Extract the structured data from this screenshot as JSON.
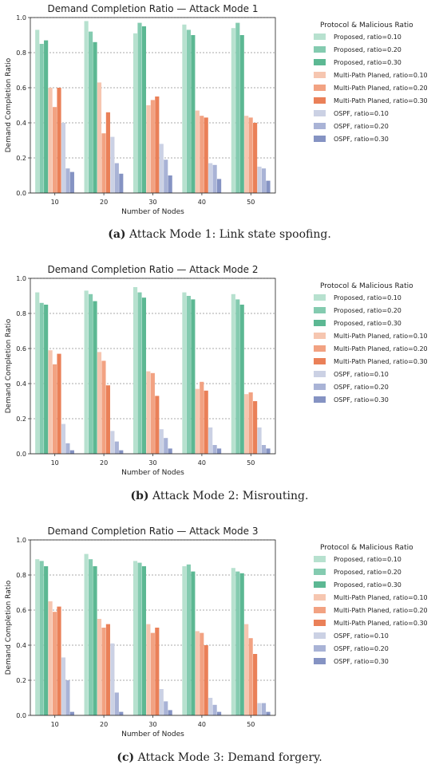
{
  "legend_title": "Protocol & Malicious Ratio",
  "series_names": [
    "Proposed, ratio=0.10",
    "Proposed, ratio=0.20",
    "Proposed, ratio=0.30",
    "Multi-Path Planed, ratio=0.10",
    "Multi-Path Planed, ratio=0.20",
    "Multi-Path Planed, ratio=0.30",
    "OSPF, ratio=0.10",
    "OSPF, ratio=0.20",
    "OSPF, ratio=0.30"
  ],
  "colors": [
    "#b7e1cf",
    "#84cbb0",
    "#5cb893",
    "#f6c6b0",
    "#f2a282",
    "#ea8058",
    "#cbd1e4",
    "#a9b3d6",
    "#8593c3"
  ],
  "panels": [
    {
      "caption_letter": "(a)",
      "caption_text": "Attack Mode 1: Link state spoofing."
    },
    {
      "caption_letter": "(b)",
      "caption_text": "Attack Mode 2: Misrouting."
    },
    {
      "caption_letter": "(c)",
      "caption_text": "Attack Mode 3: Demand forgery."
    }
  ],
  "chart_data": [
    {
      "type": "bar",
      "title": "Demand Completion Ratio — Attack Mode 1",
      "xlabel": "Number of Nodes",
      "ylabel": "Demand Completion Ratio",
      "ylim": [
        0,
        1.0
      ],
      "yticks": [
        "0.0",
        "0.2",
        "0.4",
        "0.6",
        "0.8",
        "1.0"
      ],
      "categories": [
        "10",
        "20",
        "30",
        "40",
        "50"
      ],
      "legend_position": "outside right",
      "grid": "y dashed",
      "series": [
        {
          "name": "Proposed, ratio=0.10",
          "values": [
            0.93,
            0.98,
            0.91,
            0.96,
            0.94
          ]
        },
        {
          "name": "Proposed, ratio=0.20",
          "values": [
            0.85,
            0.92,
            0.97,
            0.93,
            0.97
          ]
        },
        {
          "name": "Proposed, ratio=0.30",
          "values": [
            0.87,
            0.86,
            0.95,
            0.9,
            0.9
          ]
        },
        {
          "name": "Multi-Path Planed, ratio=0.10",
          "values": [
            0.6,
            0.63,
            0.5,
            0.47,
            0.44
          ]
        },
        {
          "name": "Multi-Path Planed, ratio=0.20",
          "values": [
            0.49,
            0.34,
            0.53,
            0.44,
            0.43
          ]
        },
        {
          "name": "Multi-Path Planed, ratio=0.30",
          "values": [
            0.6,
            0.46,
            0.55,
            0.43,
            0.4
          ]
        },
        {
          "name": "OSPF, ratio=0.10",
          "values": [
            0.4,
            0.32,
            0.28,
            0.17,
            0.15
          ]
        },
        {
          "name": "OSPF, ratio=0.20",
          "values": [
            0.14,
            0.17,
            0.19,
            0.16,
            0.14
          ]
        },
        {
          "name": "OSPF, ratio=0.30",
          "values": [
            0.12,
            0.11,
            0.1,
            0.08,
            0.07
          ]
        }
      ]
    },
    {
      "type": "bar",
      "title": "Demand Completion Ratio — Attack Mode 2",
      "xlabel": "Number of Nodes",
      "ylabel": "Demand Completion Ratio",
      "ylim": [
        0,
        1.0
      ],
      "yticks": [
        "0.0",
        "0.2",
        "0.4",
        "0.6",
        "0.8",
        "1.0"
      ],
      "categories": [
        "10",
        "20",
        "30",
        "40",
        "50"
      ],
      "legend_position": "outside right",
      "grid": "y dashed",
      "series": [
        {
          "name": "Proposed, ratio=0.10",
          "values": [
            0.92,
            0.93,
            0.95,
            0.92,
            0.91
          ]
        },
        {
          "name": "Proposed, ratio=0.20",
          "values": [
            0.86,
            0.91,
            0.92,
            0.9,
            0.88
          ]
        },
        {
          "name": "Proposed, ratio=0.30",
          "values": [
            0.85,
            0.87,
            0.89,
            0.88,
            0.85
          ]
        },
        {
          "name": "Multi-Path Planed, ratio=0.10",
          "values": [
            0.59,
            0.58,
            0.47,
            0.37,
            0.34
          ]
        },
        {
          "name": "Multi-Path Planed, ratio=0.20",
          "values": [
            0.51,
            0.53,
            0.46,
            0.41,
            0.35
          ]
        },
        {
          "name": "Multi-Path Planed, ratio=0.30",
          "values": [
            0.57,
            0.39,
            0.33,
            0.36,
            0.3
          ]
        },
        {
          "name": "OSPF, ratio=0.10",
          "values": [
            0.17,
            0.13,
            0.14,
            0.15,
            0.15
          ]
        },
        {
          "name": "OSPF, ratio=0.20",
          "values": [
            0.06,
            0.07,
            0.09,
            0.05,
            0.05
          ]
        },
        {
          "name": "OSPF, ratio=0.30",
          "values": [
            0.02,
            0.02,
            0.03,
            0.03,
            0.03
          ]
        }
      ]
    },
    {
      "type": "bar",
      "title": "Demand Completion Ratio — Attack Mode 3",
      "xlabel": "Number of Nodes",
      "ylabel": "Demand Completion Ratio",
      "ylim": [
        0,
        1.0
      ],
      "yticks": [
        "0.0",
        "0.2",
        "0.4",
        "0.6",
        "0.8",
        "1.0"
      ],
      "categories": [
        "10",
        "20",
        "30",
        "40",
        "50"
      ],
      "legend_position": "outside right",
      "grid": "y dashed",
      "series": [
        {
          "name": "Proposed, ratio=0.10",
          "values": [
            0.89,
            0.92,
            0.88,
            0.85,
            0.84
          ]
        },
        {
          "name": "Proposed, ratio=0.20",
          "values": [
            0.88,
            0.89,
            0.87,
            0.86,
            0.82
          ]
        },
        {
          "name": "Proposed, ratio=0.30",
          "values": [
            0.85,
            0.85,
            0.85,
            0.82,
            0.81
          ]
        },
        {
          "name": "Multi-Path Planed, ratio=0.10",
          "values": [
            0.65,
            0.55,
            0.52,
            0.48,
            0.52
          ]
        },
        {
          "name": "Multi-Path Planed, ratio=0.20",
          "values": [
            0.59,
            0.5,
            0.47,
            0.47,
            0.44
          ]
        },
        {
          "name": "Multi-Path Planed, ratio=0.30",
          "values": [
            0.62,
            0.52,
            0.5,
            0.4,
            0.35
          ]
        },
        {
          "name": "OSPF, ratio=0.10",
          "values": [
            0.33,
            0.41,
            0.15,
            0.1,
            0.07
          ]
        },
        {
          "name": "OSPF, ratio=0.20",
          "values": [
            0.2,
            0.13,
            0.08,
            0.06,
            0.07
          ]
        },
        {
          "name": "OSPF, ratio=0.30",
          "values": [
            0.02,
            0.02,
            0.03,
            0.02,
            0.02
          ]
        }
      ]
    }
  ]
}
